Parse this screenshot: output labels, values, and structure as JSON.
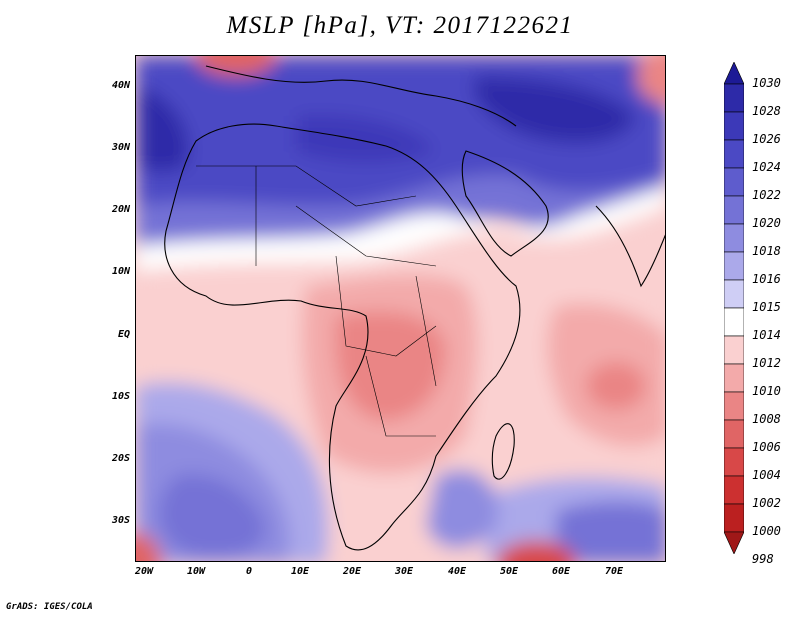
{
  "title": "MSLP [hPa], VT: 2017122621",
  "credit": "GrADS: IGES/COLA",
  "axes": {
    "y_ticks": [
      "40N",
      "30N",
      "20N",
      "10N",
      "EQ",
      "10S",
      "20S",
      "30S"
    ],
    "x_ticks": [
      "20W",
      "10W",
      "0",
      "10E",
      "20E",
      "30E",
      "40E",
      "50E",
      "60E",
      "70E"
    ]
  },
  "legend": {
    "levels": [
      "1030",
      "1028",
      "1026",
      "1024",
      "1022",
      "1020",
      "1018",
      "1016",
      "1015",
      "1014",
      "1012",
      "1010",
      "1008",
      "1006",
      "1004",
      "1002",
      "1000",
      "998"
    ],
    "colors": [
      "#1d1a96",
      "#2d2aa8",
      "#3c39b8",
      "#4b49c4",
      "#5e5ccd",
      "#7472d6",
      "#8e8ce0",
      "#aba9ea",
      "#cfcef5",
      "#ffffff",
      "#fad0d0",
      "#f3aaaa",
      "#ea8585",
      "#e06565",
      "#d84848",
      "#cc3030",
      "#bb2020",
      "#a01818"
    ]
  },
  "map": {
    "variable": "MSLP",
    "units": "hPa",
    "valid_time": "2017122621"
  }
}
